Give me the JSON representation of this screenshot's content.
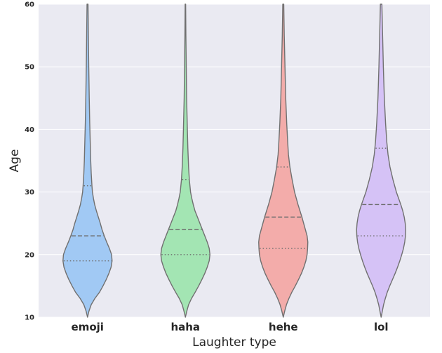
{
  "chart_data": {
    "type": "violin",
    "title": "",
    "xlabel": "Laughter type",
    "ylabel": "Age",
    "ylim": [
      10,
      60
    ],
    "yticks": [
      10,
      20,
      30,
      40,
      50,
      60
    ],
    "grid": true,
    "categories": [
      "emoji",
      "haha",
      "hehe",
      "lol"
    ],
    "colors": [
      "#a1c9f4",
      "#a3e5b3",
      "#f3acaa",
      "#d5c2f6"
    ],
    "edge_color": "#707070",
    "series": [
      {
        "category": "emoji",
        "quartiles": {
          "q1": 19,
          "median": 23,
          "q3": 31
        },
        "profile": [
          [
            10,
            0.0
          ],
          [
            11,
            0.06
          ],
          [
            12,
            0.15
          ],
          [
            13,
            0.3
          ],
          [
            14,
            0.49
          ],
          [
            15,
            0.63
          ],
          [
            16,
            0.76
          ],
          [
            17,
            0.87
          ],
          [
            18,
            0.96
          ],
          [
            19,
            1.0
          ],
          [
            20,
            0.98
          ],
          [
            21,
            0.89
          ],
          [
            22,
            0.78
          ],
          [
            23,
            0.68
          ],
          [
            24,
            0.59
          ],
          [
            25,
            0.52
          ],
          [
            26,
            0.44
          ],
          [
            27,
            0.36
          ],
          [
            28,
            0.29
          ],
          [
            29,
            0.24
          ],
          [
            30,
            0.2
          ],
          [
            31,
            0.18
          ],
          [
            33,
            0.15
          ],
          [
            35,
            0.13
          ],
          [
            38,
            0.11
          ],
          [
            41,
            0.09
          ],
          [
            45,
            0.07
          ],
          [
            50,
            0.05
          ],
          [
            55,
            0.035
          ],
          [
            60,
            0.02
          ]
        ]
      },
      {
        "category": "haha",
        "quartiles": {
          "q1": 20,
          "median": 24,
          "q3": 32
        },
        "profile": [
          [
            10,
            0.0
          ],
          [
            11,
            0.06
          ],
          [
            12,
            0.13
          ],
          [
            13,
            0.25
          ],
          [
            14,
            0.4
          ],
          [
            15,
            0.54
          ],
          [
            16,
            0.67
          ],
          [
            17,
            0.79
          ],
          [
            18,
            0.89
          ],
          [
            19,
            0.97
          ],
          [
            20,
            1.0
          ],
          [
            21,
            0.97
          ],
          [
            22,
            0.89
          ],
          [
            23,
            0.79
          ],
          [
            24,
            0.69
          ],
          [
            25,
            0.59
          ],
          [
            26,
            0.49
          ],
          [
            27,
            0.39
          ],
          [
            28,
            0.32
          ],
          [
            29,
            0.26
          ],
          [
            30,
            0.21
          ],
          [
            32,
            0.16
          ],
          [
            34,
            0.13
          ],
          [
            37,
            0.1
          ],
          [
            40,
            0.08
          ],
          [
            45,
            0.05
          ],
          [
            50,
            0.035
          ],
          [
            55,
            0.02
          ],
          [
            60,
            0.01
          ]
        ]
      },
      {
        "category": "hehe",
        "quartiles": {
          "q1": 21,
          "median": 26,
          "q3": 34
        },
        "profile": [
          [
            10,
            0.0
          ],
          [
            11,
            0.06
          ],
          [
            12,
            0.13
          ],
          [
            13,
            0.23
          ],
          [
            14,
            0.35
          ],
          [
            15,
            0.49
          ],
          [
            16,
            0.62
          ],
          [
            17,
            0.74
          ],
          [
            18,
            0.84
          ],
          [
            19,
            0.92
          ],
          [
            20,
            0.97
          ],
          [
            21,
            0.99
          ],
          [
            22,
            1.0
          ],
          [
            23,
            0.97
          ],
          [
            24,
            0.9
          ],
          [
            25,
            0.83
          ],
          [
            26,
            0.76
          ],
          [
            27,
            0.68
          ],
          [
            28,
            0.6
          ],
          [
            29,
            0.53
          ],
          [
            30,
            0.46
          ],
          [
            32,
            0.36
          ],
          [
            34,
            0.27
          ],
          [
            36,
            0.21
          ],
          [
            38,
            0.18
          ],
          [
            41,
            0.14
          ],
          [
            45,
            0.1
          ],
          [
            50,
            0.07
          ],
          [
            55,
            0.04
          ],
          [
            60,
            0.02
          ]
        ]
      },
      {
        "category": "lol",
        "quartiles": {
          "q1": 23,
          "median": 28,
          "q3": 37
        },
        "profile": [
          [
            10,
            0.0
          ],
          [
            11,
            0.05
          ],
          [
            12,
            0.1
          ],
          [
            13,
            0.17
          ],
          [
            14,
            0.25
          ],
          [
            15,
            0.35
          ],
          [
            16,
            0.46
          ],
          [
            17,
            0.57
          ],
          [
            18,
            0.67
          ],
          [
            19,
            0.76
          ],
          [
            20,
            0.84
          ],
          [
            21,
            0.91
          ],
          [
            22,
            0.96
          ],
          [
            23,
            0.99
          ],
          [
            24,
            1.0
          ],
          [
            25,
            0.98
          ],
          [
            26,
            0.94
          ],
          [
            27,
            0.88
          ],
          [
            28,
            0.8
          ],
          [
            29,
            0.71
          ],
          [
            30,
            0.62
          ],
          [
            32,
            0.48
          ],
          [
            34,
            0.36
          ],
          [
            36,
            0.28
          ],
          [
            38,
            0.23
          ],
          [
            41,
            0.18
          ],
          [
            45,
            0.13
          ],
          [
            50,
            0.09
          ],
          [
            55,
            0.06
          ],
          [
            60,
            0.03
          ]
        ]
      }
    ]
  }
}
